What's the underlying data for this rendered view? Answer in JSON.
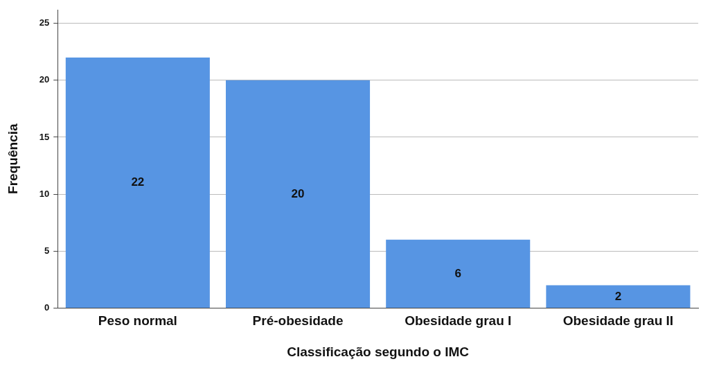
{
  "chart_data": {
    "type": "bar",
    "xlabel": "Classificação segundo o IMC",
    "ylabel": "Frequência",
    "categories": [
      "Peso normal",
      "Pré-obesidade",
      "Obesidade grau I",
      "Obesidade grau II"
    ],
    "values": [
      22,
      20,
      6,
      2
    ],
    "color": "#5795e3",
    "ylim": [
      0,
      26.2
    ],
    "yticks": [
      0,
      5,
      10,
      15,
      20,
      25
    ],
    "grid": "y",
    "data_labels": true
  }
}
